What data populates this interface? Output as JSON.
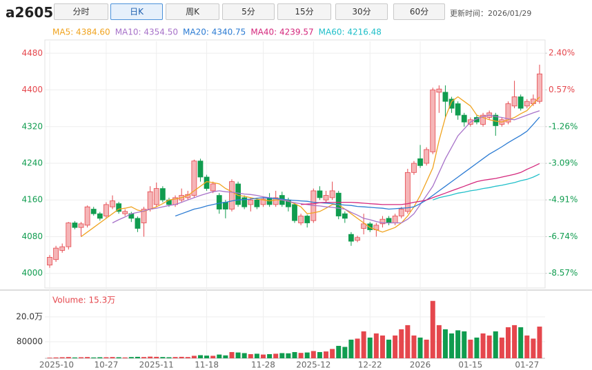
{
  "header": {
    "symbol": "a2605",
    "tabs": [
      "分时",
      "日K",
      "周K",
      "5分",
      "15分",
      "30分",
      "60分"
    ],
    "active_tab": 1,
    "update_time": "更新时间：2026/01/29"
  },
  "chart_data": [
    {
      "type": "candlestick",
      "categories": [
        "2025-10",
        null,
        null,
        null,
        null,
        null,
        null,
        null,
        null,
        "10-27",
        null,
        null,
        null,
        null,
        null,
        null,
        null,
        "2025-11",
        null,
        null,
        null,
        null,
        null,
        null,
        null,
        "11-18",
        null,
        null,
        null,
        null,
        null,
        null,
        null,
        null,
        "11-28",
        null,
        null,
        null,
        null,
        null,
        null,
        null,
        "2025-12",
        null,
        null,
        null,
        null,
        null,
        null,
        null,
        null,
        "12-22",
        null,
        null,
        null,
        null,
        null,
        null,
        null,
        "2026",
        null,
        null,
        null,
        null,
        null,
        null,
        null,
        "01-15",
        null,
        null,
        null,
        null,
        null,
        null,
        null,
        null,
        "01-27",
        null,
        null
      ],
      "open": [
        4018,
        4030,
        4050,
        4058,
        4110,
        4100,
        4105,
        4140,
        4130,
        4125,
        4145,
        4152,
        4130,
        4130,
        4120,
        4110,
        4140,
        4150,
        4185,
        4160,
        4150,
        4160,
        4165,
        4170,
        4245,
        4210,
        4180,
        4170,
        4155,
        4140,
        4195,
        4165,
        4150,
        4160,
        4150,
        4165,
        4150,
        4170,
        4160,
        4150,
        4110,
        4125,
        4115,
        4180,
        4160,
        4165,
        4175,
        4130,
        4085,
        4072,
        4098,
        4108,
        4095,
        4108,
        4120,
        4110,
        4125,
        4135,
        4220,
        4250,
        4240,
        4265,
        4395,
        4395,
        4380,
        4370,
        4345,
        4325,
        4340,
        4325,
        4340,
        4345,
        4325,
        4330,
        4365,
        4385,
        4365,
        4370,
        4375
      ],
      "high": [
        4040,
        4060,
        4065,
        4112,
        4114,
        4112,
        4148,
        4145,
        4134,
        4155,
        4170,
        4156,
        4140,
        4134,
        4124,
        4145,
        4190,
        4198,
        4190,
        4165,
        4170,
        4185,
        4180,
        4248,
        4250,
        4215,
        4200,
        4175,
        4160,
        4205,
        4200,
        4170,
        4165,
        4165,
        4168,
        4175,
        4180,
        4178,
        4165,
        4155,
        4130,
        4128,
        4185,
        4190,
        4180,
        4200,
        4180,
        4135,
        4090,
        4082,
        4130,
        4112,
        4110,
        4125,
        4125,
        4130,
        4145,
        4228,
        4245,
        4280,
        4275,
        4405,
        4410,
        4410,
        4385,
        4375,
        4350,
        4340,
        4345,
        4350,
        4355,
        4350,
        4340,
        4375,
        4420,
        4390,
        4380,
        4390,
        4455
      ],
      "low": [
        4012,
        4025,
        4045,
        4052,
        4096,
        4080,
        4100,
        4126,
        4115,
        4120,
        4140,
        4130,
        4125,
        4112,
        4090,
        4080,
        4135,
        4145,
        4155,
        4145,
        4145,
        4155,
        4160,
        4165,
        4200,
        4180,
        4175,
        4130,
        4120,
        4135,
        4145,
        4140,
        4135,
        4140,
        4145,
        4145,
        4145,
        4145,
        4135,
        4110,
        4105,
        4100,
        4110,
        4160,
        4155,
        4160,
        4118,
        4110,
        4060,
        4068,
        4085,
        4090,
        4080,
        4100,
        4105,
        4105,
        4120,
        4130,
        4215,
        4230,
        4235,
        4260,
        4350,
        4340,
        4350,
        4335,
        4320,
        4320,
        4325,
        4320,
        4335,
        4300,
        4320,
        4325,
        4360,
        4355,
        4360,
        4365,
        4370
      ],
      "close": [
        4035,
        4055,
        4058,
        4110,
        4100,
        4108,
        4145,
        4130,
        4120,
        4150,
        4158,
        4135,
        4135,
        4120,
        4098,
        4140,
        4178,
        4185,
        4160,
        4150,
        4165,
        4170,
        4172,
        4245,
        4210,
        4185,
        4195,
        4140,
        4140,
        4200,
        4150,
        4145,
        4160,
        4145,
        4162,
        4150,
        4165,
        4150,
        4145,
        4115,
        4125,
        4110,
        4180,
        4165,
        4170,
        4180,
        4125,
        4120,
        4070,
        4078,
        4108,
        4095,
        4105,
        4118,
        4110,
        4125,
        4140,
        4220,
        4240,
        4235,
        4270,
        4400,
        4402,
        4375,
        4360,
        4345,
        4330,
        4335,
        4330,
        4345,
        4350,
        4322,
        4335,
        4370,
        4385,
        4360,
        4375,
        4380,
        4435
      ],
      "up_color": "#e5474d",
      "up_fill": "#f5b5b7",
      "down_color": "#109c4f",
      "series": [
        {
          "name": "MA5: 4384.60",
          "color": "#f0a31e",
          "values": [
            null,
            null,
            null,
            null,
            null,
            4080,
            4090,
            4100,
            4110,
            4120,
            4130,
            4140,
            4142,
            4145,
            4138,
            4135,
            4140,
            4145,
            4152,
            4160,
            4162,
            4165,
            4170,
            4180,
            4190,
            4200,
            4198,
            4195,
            4185,
            4178,
            4170,
            4168,
            4165,
            4162,
            4160,
            4158,
            4160,
            4160,
            4158,
            4152,
            4145,
            4130,
            4132,
            4135,
            4142,
            4150,
            4150,
            4140,
            4130,
            4120,
            4110,
            4100,
            4095,
            4090,
            4095,
            4100,
            4110,
            4125,
            4145,
            4170,
            4200,
            4230,
            4290,
            4340,
            4375,
            4385,
            4375,
            4365,
            4345,
            4340,
            4335,
            4332,
            4330,
            4335,
            4340,
            4348,
            4355,
            4370,
            4384.6
          ]
        },
        {
          "name": "MA10: 4354.50",
          "color": "#a772c9",
          "values": [
            null,
            null,
            null,
            null,
            null,
            null,
            null,
            null,
            null,
            null,
            4110,
            4117,
            4123,
            4130,
            4133,
            4136,
            4140,
            4142,
            4145,
            4148,
            4150,
            4155,
            4160,
            4165,
            4170,
            4174,
            4178,
            4180,
            4178,
            4177,
            4175,
            4173,
            4172,
            4170,
            4167,
            4165,
            4163,
            4160,
            4157,
            4154,
            4152,
            4150,
            4148,
            4147,
            4145,
            4144,
            4142,
            4140,
            4133,
            4127,
            4120,
            4117,
            4113,
            4110,
            4110,
            4110,
            4110,
            4118,
            4130,
            4150,
            4170,
            4190,
            4220,
            4250,
            4275,
            4300,
            4315,
            4330,
            4337,
            4342,
            4345,
            4342,
            4340,
            4337,
            4335,
            4340,
            4345,
            4350,
            4354.5
          ]
        },
        {
          "name": "MA20: 4340.75",
          "color": "#2b7bd3",
          "values": [
            null,
            null,
            null,
            null,
            null,
            null,
            null,
            null,
            null,
            null,
            null,
            null,
            null,
            null,
            null,
            null,
            null,
            null,
            null,
            null,
            4125,
            4130,
            4135,
            4140,
            4143,
            4147,
            4150,
            4153,
            4155,
            4158,
            4160,
            4161,
            4162,
            4164,
            4165,
            4164,
            4163,
            4162,
            4160,
            4159,
            4158,
            4157,
            4155,
            4154,
            4153,
            4152,
            4150,
            4149,
            4148,
            4146,
            4145,
            4144,
            4143,
            4142,
            4140,
            4141,
            4142,
            4143,
            4145,
            4152,
            4160,
            4170,
            4180,
            4190,
            4200,
            4210,
            4220,
            4230,
            4240,
            4250,
            4260,
            4268,
            4276,
            4285,
            4293,
            4301,
            4310,
            4325,
            4340.75
          ]
        },
        {
          "name": "MA40: 4239.57",
          "color": "#d4277c",
          "values": [
            null,
            null,
            null,
            null,
            null,
            null,
            null,
            null,
            null,
            null,
            null,
            null,
            null,
            null,
            null,
            null,
            null,
            null,
            null,
            null,
            null,
            null,
            null,
            null,
            null,
            null,
            null,
            null,
            null,
            null,
            null,
            null,
            null,
            null,
            null,
            null,
            null,
            null,
            null,
            null,
            4150,
            4151,
            4152,
            4154,
            4155,
            4155,
            4155,
            4155,
            4155,
            4154,
            4153,
            4152,
            4151,
            4150,
            4150,
            4150,
            4150,
            4152,
            4155,
            4157,
            4160,
            4165,
            4170,
            4175,
            4180,
            4185,
            4190,
            4195,
            4200,
            4203,
            4205,
            4207,
            4210,
            4213,
            4216,
            4220,
            4227,
            4233,
            4239.57
          ]
        },
        {
          "name": "MA60: 4216.48",
          "color": "#1fbfc9",
          "values": [
            null,
            null,
            null,
            null,
            null,
            null,
            null,
            null,
            null,
            null,
            null,
            null,
            null,
            null,
            null,
            null,
            null,
            null,
            null,
            null,
            null,
            null,
            null,
            null,
            null,
            null,
            null,
            null,
            null,
            null,
            null,
            null,
            null,
            null,
            null,
            null,
            null,
            null,
            null,
            null,
            null,
            null,
            null,
            null,
            null,
            null,
            null,
            null,
            null,
            null,
            null,
            null,
            null,
            null,
            null,
            null,
            null,
            null,
            null,
            null,
            null,
            4160,
            4165,
            4168,
            4171,
            4175,
            4177,
            4180,
            4182,
            4185,
            4187,
            4190,
            4192,
            4195,
            4198,
            4202,
            4205,
            4210,
            4216.48
          ]
        }
      ],
      "ylim": [
        3968,
        4506
      ],
      "yticks": [
        4000,
        4080,
        4160,
        4240,
        4320,
        4400,
        4480
      ],
      "y2lim": [
        -9.3,
        2.99
      ],
      "y2ticks": [
        {
          "value": -8.57,
          "label": "-8.57%"
        },
        {
          "value": -6.74,
          "label": "-6.74%"
        },
        {
          "value": -4.91,
          "label": "-4.91%"
        },
        {
          "value": -3.09,
          "label": "-3.09%"
        },
        {
          "value": -1.26,
          "label": "-1.26%"
        },
        {
          "value": 0.57,
          "label": "0.57%"
        },
        {
          "value": 2.4,
          "label": "2.40%"
        }
      ],
      "grid": true
    },
    {
      "type": "bar",
      "title": "Volume: 15.3万",
      "values": [
        3000,
        4000,
        5000,
        6000,
        4000,
        5000,
        6000,
        4000,
        5000,
        5000,
        6000,
        5000,
        4000,
        6000,
        7000,
        6000,
        8000,
        7000,
        6000,
        5000,
        6000,
        7000,
        6000,
        12000,
        15000,
        13000,
        12000,
        18000,
        14000,
        30000,
        28000,
        25000,
        20000,
        22000,
        18000,
        20000,
        22000,
        25000,
        24000,
        30000,
        26000,
        28000,
        35000,
        30000,
        33000,
        45000,
        60000,
        55000,
        90000,
        95000,
        130000,
        100000,
        120000,
        110000,
        90000,
        110000,
        140000,
        160000,
        110000,
        100000,
        90000,
        277000,
        160000,
        140000,
        120000,
        135000,
        130000,
        90000,
        100000,
        120000,
        110000,
        130000,
        100000,
        150000,
        160000,
        150000,
        110000,
        95000,
        153000
      ],
      "ylim": [
        0,
        326000
      ],
      "yticks": [
        {
          "value": 80000,
          "label": "80000"
        },
        {
          "value": 200000,
          "label": "20.0万"
        }
      ],
      "grid": true
    }
  ]
}
